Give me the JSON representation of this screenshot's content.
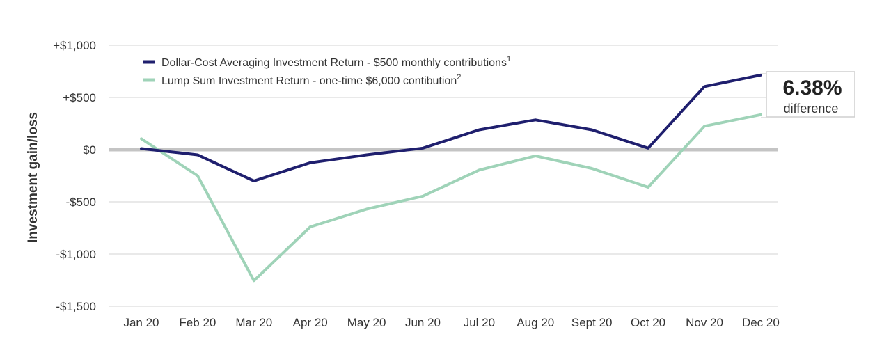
{
  "chart_data": {
    "type": "line",
    "ylabel": "Investment gain/loss",
    "categories": [
      "Jan 20",
      "Feb 20",
      "Mar 20",
      "Apr 20",
      "May 20",
      "Jun 20",
      "Jul 20",
      "Aug 20",
      "Sept 20",
      "Oct 20",
      "Nov 20",
      "Dec 20"
    ],
    "yticks": [
      1000,
      500,
      0,
      -500,
      -1000,
      -1500
    ],
    "ytick_labels": [
      "+$1,000",
      "+$500",
      "$0",
      "-$500",
      "-$1,000",
      "-$1,500"
    ],
    "ylim": [
      -1500,
      1000
    ],
    "grid": true,
    "zero_line": true,
    "legend_position": "top-left",
    "series": [
      {
        "name": "Dollar-Cost Averaging Investment Return - $500 monthly contributions",
        "footnote": "1",
        "color": "#1f1f6e",
        "values": [
          10,
          -50,
          -300,
          -125,
          -50,
          15,
          190,
          285,
          190,
          15,
          605,
          715
        ]
      },
      {
        "name": "Lump Sum Investment Return - one-time $6,000 contibution",
        "footnote": "2",
        "color": "#9fd3b8",
        "values": [
          105,
          -250,
          -1255,
          -740,
          -570,
          -445,
          -195,
          -60,
          -180,
          -360,
          225,
          335
        ]
      }
    ],
    "annotation": {
      "value": "6.38%",
      "label": "difference"
    }
  }
}
